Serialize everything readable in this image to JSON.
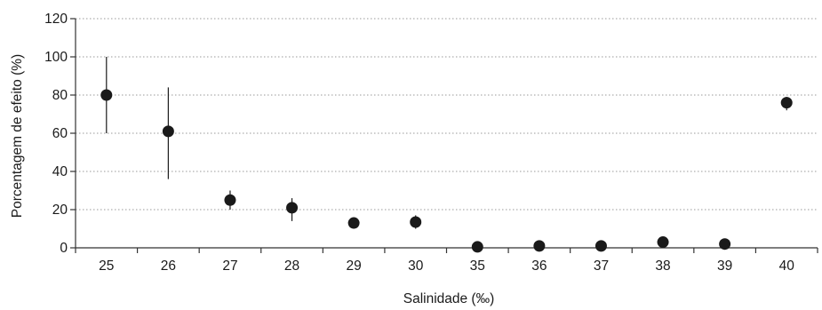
{
  "chart_data": {
    "type": "scatter",
    "title": "",
    "xlabel": "Salinidade (‰)",
    "ylabel": "Porcentagem de efeito (%)",
    "categories": [
      "25",
      "26",
      "27",
      "28",
      "29",
      "30",
      "35",
      "36",
      "37",
      "38",
      "39",
      "40"
    ],
    "series": [
      {
        "values": [
          80,
          61,
          25,
          21,
          13,
          13.5,
          0.5,
          1,
          1,
          3,
          2,
          76
        ],
        "error_low": [
          60,
          36,
          20,
          14,
          10,
          10,
          0,
          0,
          0,
          0,
          0,
          72
        ],
        "error_high": [
          100,
          84,
          30,
          26,
          16,
          17,
          1.5,
          2,
          2,
          5,
          3.5,
          79
        ]
      }
    ],
    "ylim": [
      0,
      120
    ],
    "yticks": [
      0,
      20,
      40,
      60,
      80,
      100,
      120
    ],
    "grid": "horizontal dotted",
    "legend": "none",
    "marker_color": "#1a1a1a"
  }
}
